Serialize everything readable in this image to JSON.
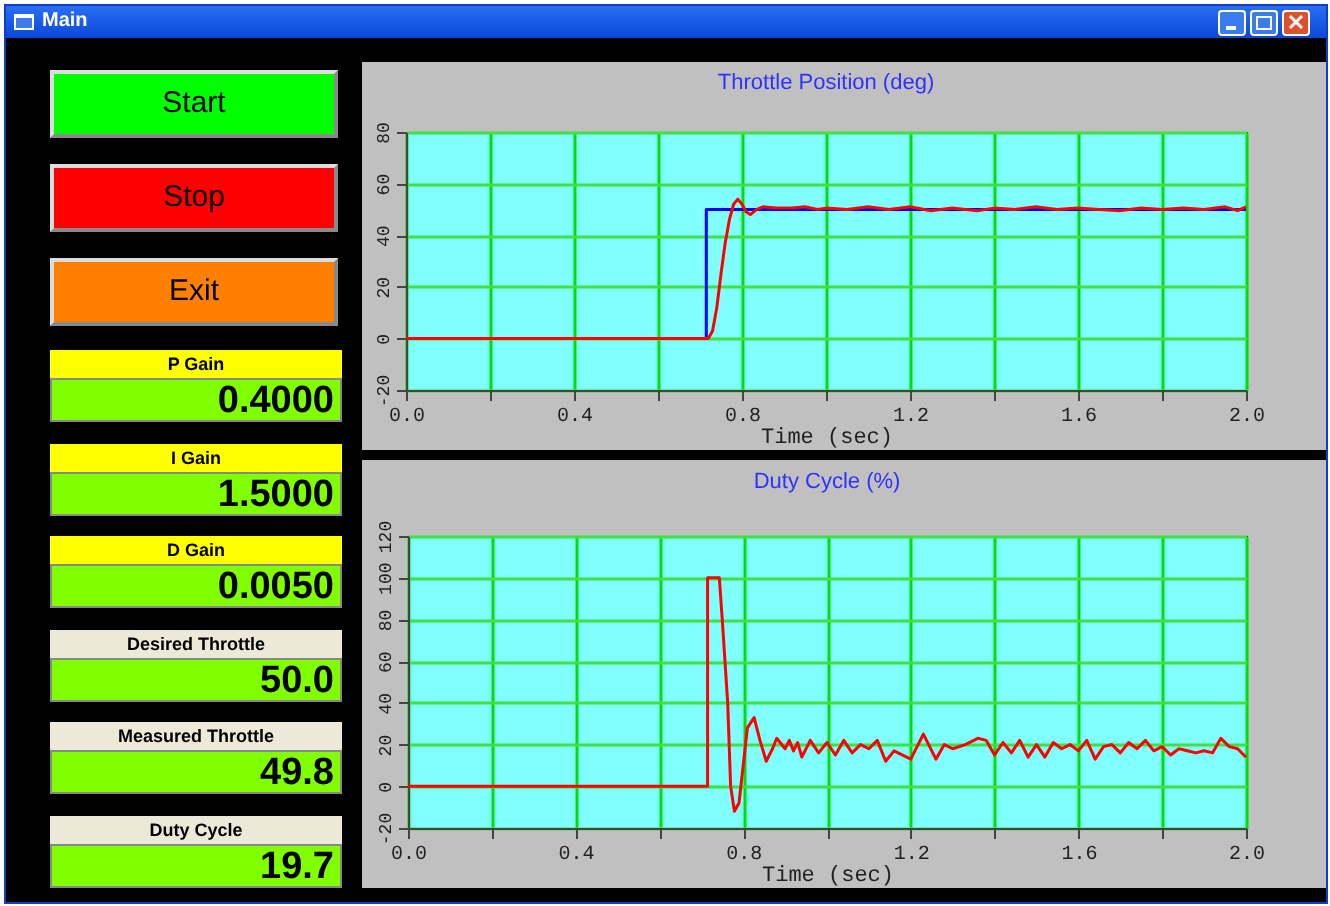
{
  "chart_data": [
    {
      "type": "other",
      "title": "Main",
      "annotations": [
        "Start",
        "Stop",
        "Exit",
        "P Gain",
        "0.4000",
        "I Gain",
        "1.5000",
        "D Gain",
        "0.0050",
        "Desired Throttle",
        "50.0",
        "Measured Throttle",
        "49.8",
        "Duty Cycle",
        "19.7"
      ]
    },
    {
      "type": "line",
      "title": "Throttle Position (deg)",
      "xlabel": "Time  (sec)",
      "xlim": [
        0,
        2
      ],
      "ylim": [
        -20,
        80
      ],
      "xticks": [
        {
          "value": 0,
          "label": "0.0"
        },
        {
          "value": 0.2,
          "label": null
        },
        {
          "value": 0.4,
          "label": "0.4"
        },
        {
          "value": 0.6,
          "label": null
        },
        {
          "value": 0.8,
          "label": "0.8"
        },
        {
          "value": 1,
          "label": null
        },
        {
          "value": 1.2,
          "label": "1.2"
        },
        {
          "value": 1.4,
          "label": null
        },
        {
          "value": 1.6,
          "label": "1.6"
        },
        {
          "value": 1.8,
          "label": null
        },
        {
          "value": 2,
          "label": "2.0"
        }
      ],
      "yticks": [
        -20,
        0,
        20,
        40,
        60,
        80
      ],
      "grid": true,
      "series": [
        {
          "color": "#0000ff",
          "x": [
            0,
            0.715,
            0.715,
            2.0
          ],
          "values": [
            0,
            0,
            50,
            50
          ]
        },
        {
          "color": "#ff0000",
          "x": [
            0,
            0.72,
            0.73,
            0.74,
            0.75,
            0.76,
            0.77,
            0.78,
            0.79,
            0.8,
            0.81,
            0.82,
            0.835,
            0.85,
            0.88,
            0.92,
            0.95,
            0.98,
            1.0,
            1.05,
            1.1,
            1.15,
            1.2,
            1.25,
            1.3,
            1.36,
            1.4,
            1.45,
            1.5,
            1.55,
            1.6,
            1.65,
            1.7,
            1.75,
            1.8,
            1.85,
            1.9,
            1.95,
            1.98,
            2.0
          ],
          "values": [
            0,
            0,
            3,
            12,
            25,
            37,
            46,
            52,
            54,
            52,
            49,
            48,
            50,
            51,
            50.5,
            50.5,
            51,
            50,
            50.5,
            50,
            51,
            50,
            51,
            49.5,
            50.5,
            49.5,
            50.5,
            50,
            51,
            50,
            50.5,
            50,
            49.5,
            50.5,
            50,
            50.5,
            50,
            51,
            49.5,
            51
          ]
        }
      ]
    },
    {
      "type": "line",
      "title": "Duty Cycle (%)",
      "xlabel": "Time  (sec)",
      "xlim": [
        0,
        2
      ],
      "ylim": [
        -20,
        120
      ],
      "xticks": [
        {
          "value": 0,
          "label": "0.0"
        },
        {
          "value": 0.2,
          "label": null
        },
        {
          "value": 0.4,
          "label": "0.4"
        },
        {
          "value": 0.6,
          "label": null
        },
        {
          "value": 0.8,
          "label": "0.8"
        },
        {
          "value": 1,
          "label": null
        },
        {
          "value": 1.2,
          "label": "1.2"
        },
        {
          "value": 1.4,
          "label": null
        },
        {
          "value": 1.6,
          "label": "1.6"
        },
        {
          "value": 1.8,
          "label": null
        },
        {
          "value": 2,
          "label": "2.0"
        }
      ],
      "yticks": [
        -20,
        0,
        20,
        40,
        60,
        80,
        100,
        120
      ],
      "grid": true,
      "series": [
        {
          "color": "#ff0000",
          "x": [
            0,
            0.715,
            0.715,
            0.743,
            0.75,
            0.763,
            0.77,
            0.779,
            0.79,
            0.8,
            0.81,
            0.826,
            0.84,
            0.855,
            0.87,
            0.88,
            0.9,
            0.91,
            0.92,
            0.93,
            0.94,
            0.96,
            0.98,
            1.0,
            1.02,
            1.04,
            1.06,
            1.08,
            1.1,
            1.12,
            1.14,
            1.16,
            1.2,
            1.23,
            1.26,
            1.28,
            1.3,
            1.33,
            1.36,
            1.38,
            1.4,
            1.42,
            1.44,
            1.46,
            1.48,
            1.5,
            1.52,
            1.54,
            1.56,
            1.58,
            1.6,
            1.62,
            1.64,
            1.66,
            1.68,
            1.7,
            1.72,
            1.74,
            1.76,
            1.78,
            1.8,
            1.82,
            1.84,
            1.86,
            1.88,
            1.9,
            1.92,
            1.94,
            1.96,
            1.98,
            2.0
          ],
          "values": [
            0,
            0,
            100,
            100,
            80,
            40,
            0,
            -12,
            -8,
            10,
            28,
            33,
            22,
            12,
            18,
            23,
            18,
            22,
            17,
            21,
            14,
            22,
            16,
            21,
            15,
            22,
            16,
            20,
            18,
            22,
            12,
            17,
            13,
            25,
            13,
            20,
            18,
            20,
            23,
            22,
            15,
            21,
            16,
            22,
            14,
            20,
            14,
            21,
            18,
            20,
            17,
            22,
            13,
            19,
            20,
            16,
            21,
            18,
            22,
            17,
            19,
            15,
            18,
            17,
            16,
            17,
            16,
            23,
            19,
            18,
            14
          ]
        }
      ]
    }
  ]
}
